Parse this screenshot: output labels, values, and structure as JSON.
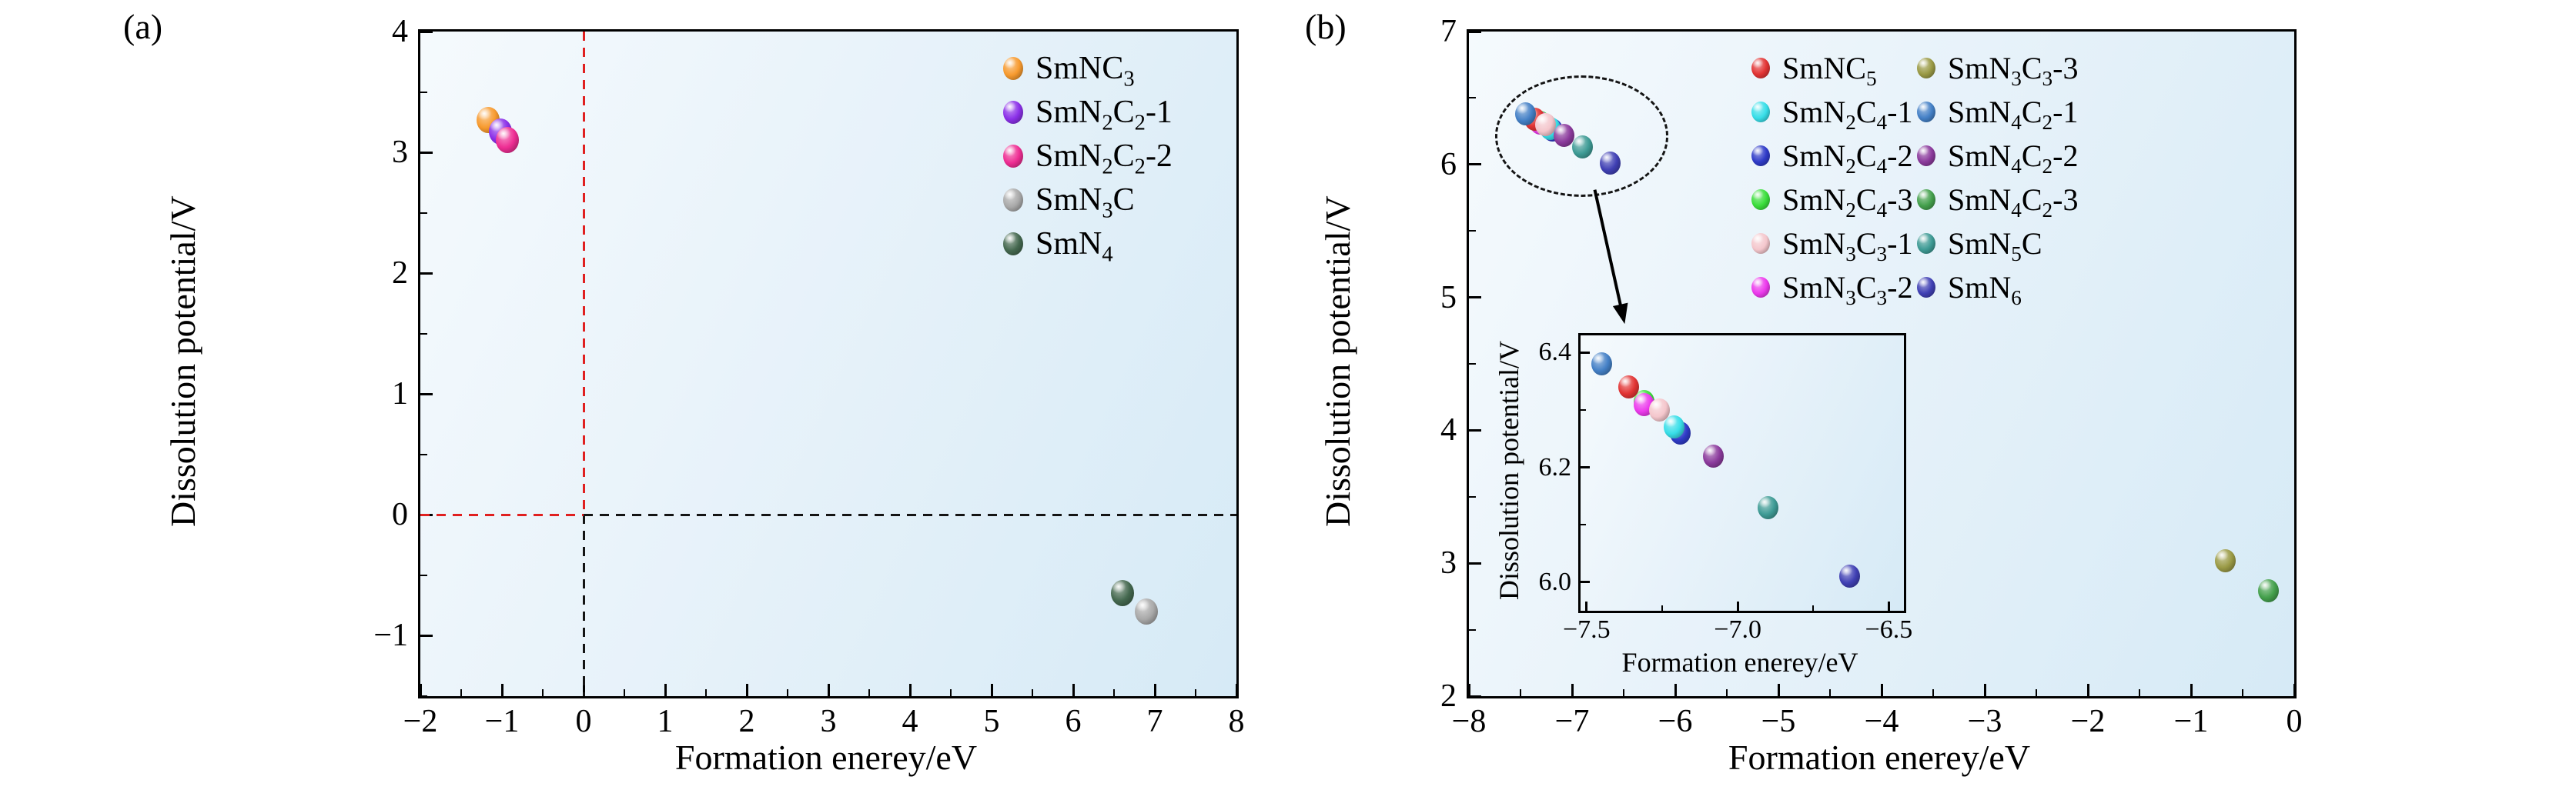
{
  "figure": {
    "panels": [
      {
        "letter": "(a)",
        "xlabel": "Formation enerey/eV",
        "ylabel": "Dissolution potential/V"
      },
      {
        "letter": "(b)",
        "xlabel": "Formation enerey/eV",
        "ylabel": "Dissolution potential/V"
      }
    ]
  },
  "chart_data": [
    {
      "type": "scatter",
      "panel": "a",
      "xlabel": "Formation enerey/eV",
      "ylabel": "Dissolution potential/V",
      "xlim": [
        -2,
        8
      ],
      "ylim": [
        -1.5,
        4
      ],
      "xticks": [
        -2,
        -1,
        0,
        1,
        2,
        3,
        4,
        5,
        6,
        7,
        8
      ],
      "yticks": [
        -1,
        0,
        1,
        2,
        3,
        4
      ],
      "x_minor_step": 0.5,
      "y_minor_step": 0.5,
      "x_tick_decimals": 0,
      "y_tick_decimals": 0,
      "grid": false,
      "legend_position": "top-right",
      "reference_lines": [
        {
          "orient": "v",
          "at": 0,
          "span": [
            0,
            4
          ],
          "color": "#e02020"
        },
        {
          "orient": "v",
          "at": 0,
          "span": [
            -1.5,
            0
          ],
          "color": "#141414"
        },
        {
          "orient": "h",
          "at": 0,
          "span": [
            -2,
            0
          ],
          "color": "#e02020"
        },
        {
          "orient": "h",
          "at": 0,
          "span": [
            0,
            8
          ],
          "color": "#141414"
        }
      ],
      "series": [
        {
          "id": "SmNC3",
          "label": "SmNC~3~",
          "color": "#F79A2E",
          "points": [
            [
              -1.17,
              3.27
            ]
          ]
        },
        {
          "id": "SmN2C2-1",
          "label": "SmN~2~C~2~-1",
          "color": "#8B30E8",
          "points": [
            [
              -1.02,
              3.17
            ]
          ]
        },
        {
          "id": "SmN2C2-2",
          "label": "SmN~2~C~2~-2",
          "color": "#EE2D93",
          "points": [
            [
              -0.93,
              3.1
            ]
          ]
        },
        {
          "id": "SmN3C",
          "label": "SmN~3~C",
          "color": "#A9A9A9",
          "points": [
            [
              6.9,
              -0.8
            ]
          ]
        },
        {
          "id": "SmN4",
          "label": "SmN~4~",
          "color": "#44684F",
          "points": [
            [
              6.6,
              -0.65
            ]
          ]
        }
      ],
      "paint_order": [
        "SmNC3",
        "SmN2C2-1",
        "SmN2C2-2",
        "SmN3C",
        "SmN4"
      ]
    },
    {
      "type": "scatter",
      "panel": "b",
      "xlabel": "Formation enerey/eV",
      "ylabel": "Dissolution potential/V",
      "xlim": [
        -8,
        0
      ],
      "ylim": [
        2,
        7
      ],
      "xticks": [
        -8,
        -7,
        -6,
        -5,
        -4,
        -3,
        -2,
        -1,
        0
      ],
      "yticks": [
        2,
        3,
        4,
        5,
        6,
        7
      ],
      "x_minor_step": 0.5,
      "y_minor_step": 0.5,
      "x_tick_decimals": 0,
      "y_tick_decimals": 0,
      "grid": false,
      "legend_position": "top-right",
      "legend_columns": 2,
      "series": [
        {
          "id": "SmNC5",
          "label": "SmNC~5~",
          "color": "#E23434",
          "points": [
            [
              -7.36,
              6.34
            ]
          ]
        },
        {
          "id": "SmN2C4-1",
          "label": "SmN~2~C~4~-1",
          "color": "#38DEE8",
          "points": [
            [
              -7.21,
              6.27
            ]
          ]
        },
        {
          "id": "SmN2C4-2",
          "label": "SmN~2~C~4~-2",
          "color": "#2F3BC8",
          "points": [
            [
              -7.19,
              6.26
            ]
          ]
        },
        {
          "id": "SmN2C4-3",
          "label": "SmN~2~C~4~-3",
          "color": "#3BDE3B",
          "points": [
            [
              -7.31,
              6.315
            ]
          ]
        },
        {
          "id": "SmN3C3-1",
          "label": "SmN~3~C~3~-1",
          "color": "#F4C6CC",
          "points": [
            [
              -7.26,
              6.3
            ]
          ]
        },
        {
          "id": "SmN3C3-2",
          "label": "SmN~3~C~3~-2",
          "color": "#EC3AEC",
          "points": [
            [
              -7.31,
              6.31
            ]
          ]
        },
        {
          "id": "SmN3C3-3",
          "label": "SmN~3~C~3~-3",
          "color": "#9A9A45",
          "points": [
            [
              -0.67,
              3.02
            ]
          ]
        },
        {
          "id": "SmN4C2-1",
          "label": "SmN~4~C~2~-1",
          "color": "#4480C6",
          "points": [
            [
              -7.45,
              6.38
            ]
          ]
        },
        {
          "id": "SmN4C2-2",
          "label": "SmN~4~C~2~-2",
          "color": "#8B3A9C",
          "points": [
            [
              -7.08,
              6.22
            ]
          ]
        },
        {
          "id": "SmN4C2-3",
          "label": "SmN~4~C~2~-3",
          "color": "#44A04C",
          "points": [
            [
              -0.25,
              2.79
            ]
          ]
        },
        {
          "id": "SmN5C",
          "label": "SmN~5~C",
          "color": "#3E9B95",
          "points": [
            [
              -6.9,
              6.13
            ]
          ]
        },
        {
          "id": "SmN6",
          "label": "SmN~6~",
          "color": "#4040B4",
          "points": [
            [
              -6.63,
              6.01
            ]
          ]
        }
      ],
      "paint_order": [
        "SmN2C4-3",
        "SmN3C3-2",
        "SmNC5",
        "SmN2C4-2",
        "SmN2C4-1",
        "SmN3C3-1",
        "SmN4C2-1",
        "SmN4C2-2",
        "SmN5C",
        "SmN6",
        "SmN3C3-3",
        "SmN4C2-3"
      ],
      "annotations": {
        "ellipse": {
          "cx": -6.93,
          "cy": 6.23,
          "rx": 0.82,
          "ry": 0.44,
          "color": "#141414"
        },
        "arrow": {
          "from": [
            -6.78,
            5.81
          ],
          "to": [
            -6.49,
            4.8
          ],
          "color": "#000000"
        }
      },
      "inset": {
        "xlabel": "Formation enerey/eV",
        "ylabel": "Dissolution potential/V",
        "xlim": [
          -7.52,
          -6.45
        ],
        "ylim": [
          5.95,
          6.43
        ],
        "xticks": [
          -7.5,
          -7.0,
          -6.5
        ],
        "yticks": [
          6.0,
          6.2,
          6.4
        ],
        "x_minor_step": 0.25,
        "y_minor_step": 0.1,
        "x_tick_decimals": 1,
        "y_tick_decimals": 1,
        "series_filter_x_max": -6.0
      }
    }
  ]
}
